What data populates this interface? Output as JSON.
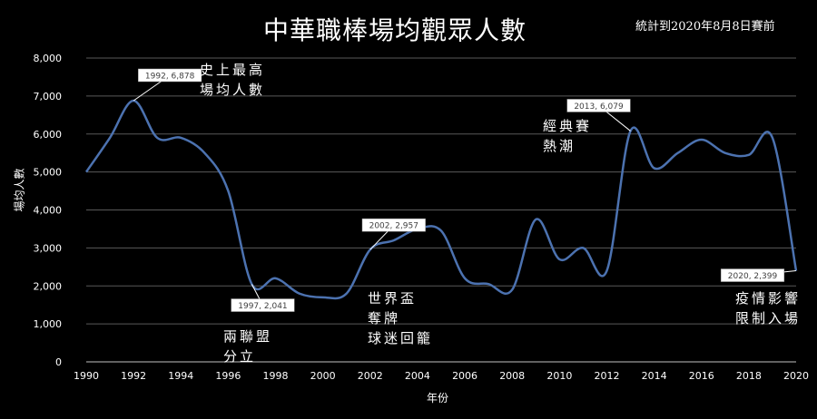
{
  "chart_data": {
    "type": "line",
    "title": "中華職棒場均觀眾人數",
    "note": "統計到2020年8月8日賽前",
    "xlabel": "年份",
    "ylabel": "場均人數",
    "xlim": [
      1990,
      2020
    ],
    "ylim": [
      0,
      8000
    ],
    "x_ticks": [
      "1990",
      "1992",
      "1994",
      "1996",
      "1998",
      "2000",
      "2002",
      "2004",
      "2006",
      "2008",
      "2010",
      "2012",
      "2014",
      "2016",
      "2018",
      "2020"
    ],
    "y_ticks": [
      "0",
      "1,000",
      "2,000",
      "3,000",
      "4,000",
      "5,000",
      "6,000",
      "7,000",
      "8,000"
    ],
    "series_color": "#4c72b0",
    "x": [
      1990,
      1991,
      1992,
      1993,
      1994,
      1995,
      1996,
      1997,
      1998,
      1999,
      2000,
      2001,
      2002,
      2003,
      2004,
      2005,
      2006,
      2007,
      2008,
      2009,
      2010,
      2011,
      2012,
      2013,
      2014,
      2015,
      2016,
      2017,
      2018,
      2019,
      2020
    ],
    "y": [
      5000,
      5900,
      6878,
      5900,
      5900,
      5500,
      4500,
      2041,
      2200,
      1800,
      1700,
      1800,
      2957,
      3200,
      3500,
      3450,
      2200,
      2050,
      1900,
      3750,
      2700,
      3000,
      2400,
      6079,
      5100,
      5500,
      5850,
      5500,
      5450,
      5900,
      2399
    ],
    "data_labels": [
      {
        "x": 1992,
        "y": 6878,
        "text": "1992, 6,878"
      },
      {
        "x": 1997,
        "y": 2041,
        "text": "1997, 2,041"
      },
      {
        "x": 2002,
        "y": 2957,
        "text": "2002, 2,957"
      },
      {
        "x": 2013,
        "y": 6079,
        "text": "2013, 6,079"
      },
      {
        "x": 2020,
        "y": 2399,
        "text": "2020, 2,399"
      }
    ],
    "annotations": [
      {
        "text": "史上最高\n場均人數"
      },
      {
        "text": "兩聯盟\n分立"
      },
      {
        "text": "世界盃\n奪牌\n球迷回籠"
      },
      {
        "text": "經典賽\n熱潮"
      },
      {
        "text": "疫情影響\n限制入場"
      }
    ]
  }
}
